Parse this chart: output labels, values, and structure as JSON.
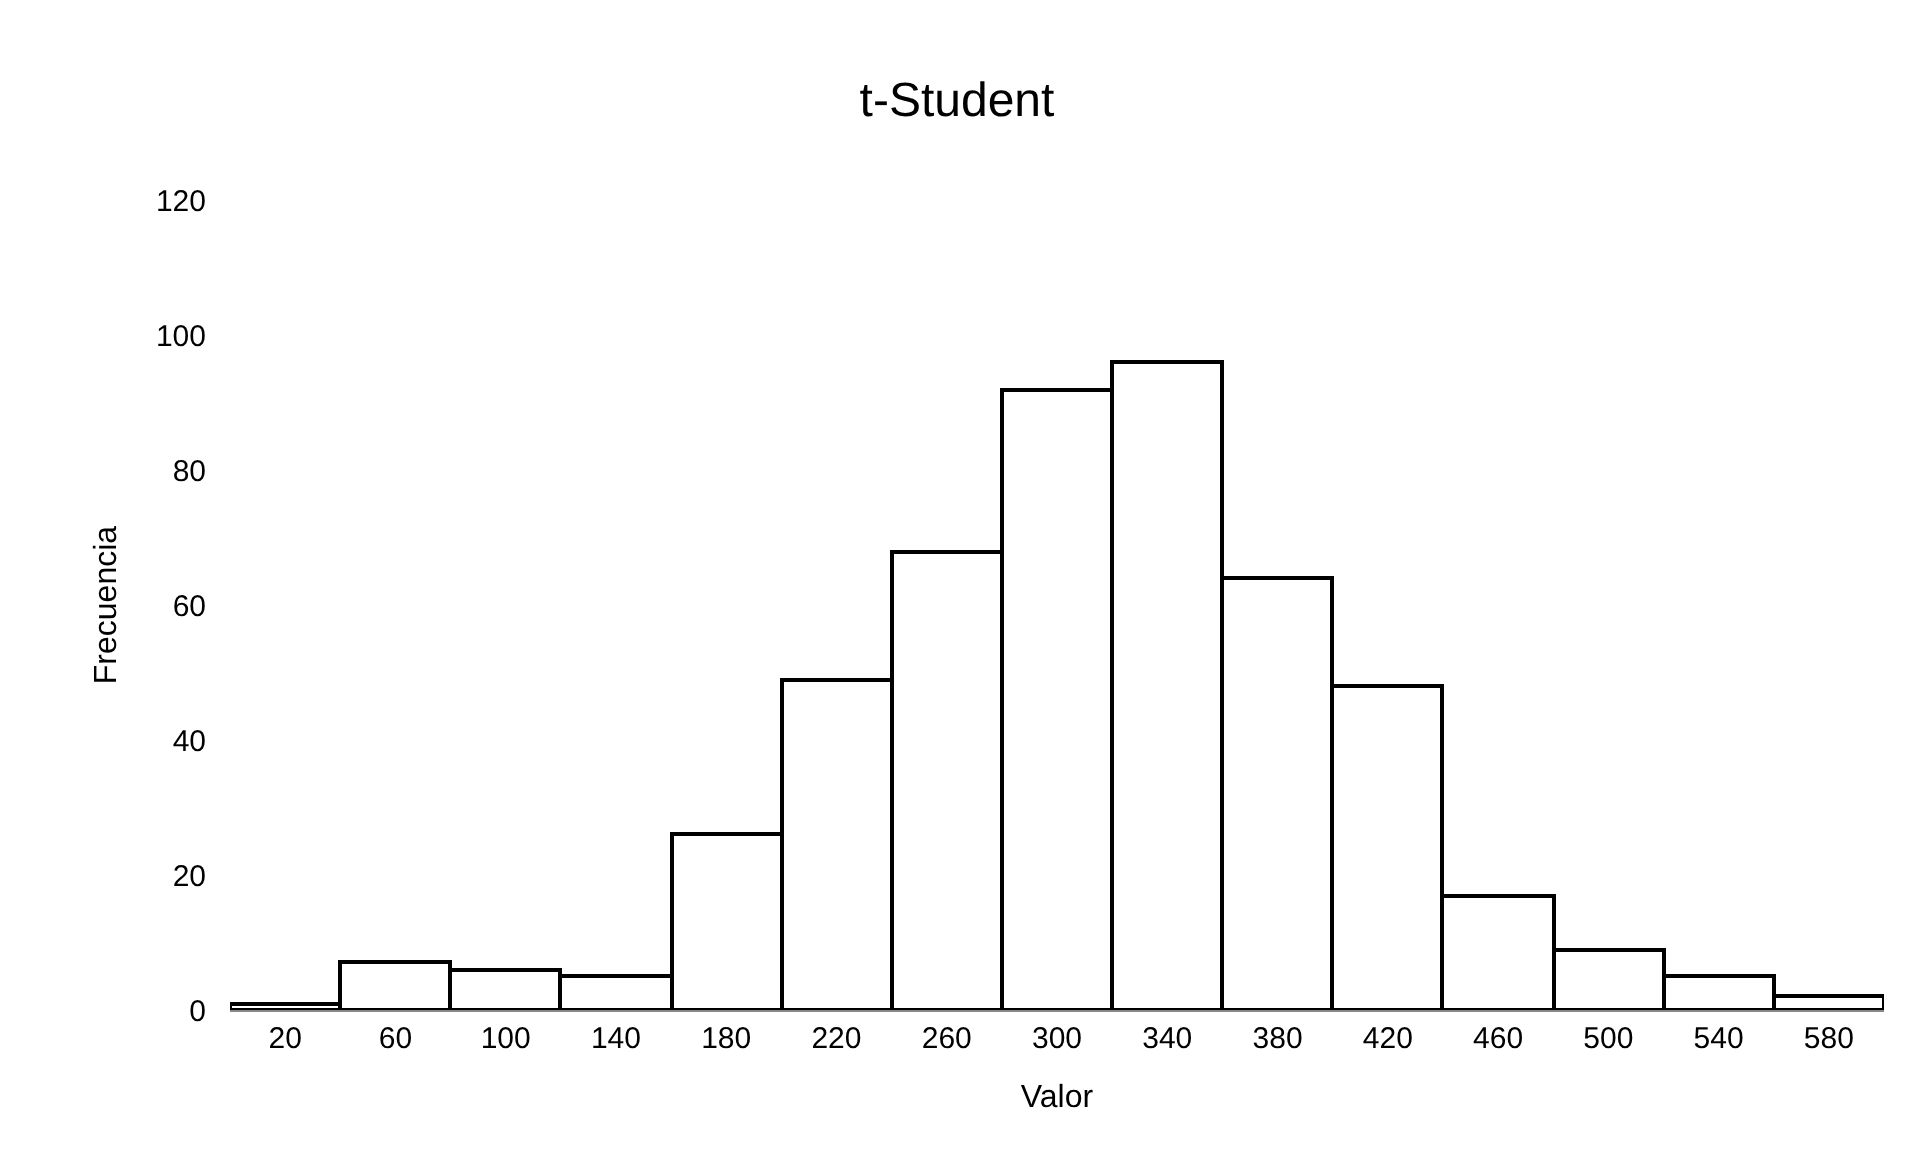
{
  "chart_data": {
    "type": "bar",
    "title": "t-Student",
    "xlabel": "Valor",
    "ylabel": "Frecuencia",
    "categories": [
      "20",
      "60",
      "100",
      "140",
      "180",
      "220",
      "260",
      "300",
      "340",
      "380",
      "420",
      "460",
      "500",
      "540",
      "580"
    ],
    "values": [
      1,
      7,
      6,
      5,
      26,
      49,
      68,
      92,
      96,
      64,
      48,
      17,
      9,
      5,
      2
    ],
    "color": "#ffffff",
    "ylim": [
      0,
      120
    ],
    "yticks": [
      0,
      20,
      40,
      60,
      80,
      100,
      120
    ]
  }
}
